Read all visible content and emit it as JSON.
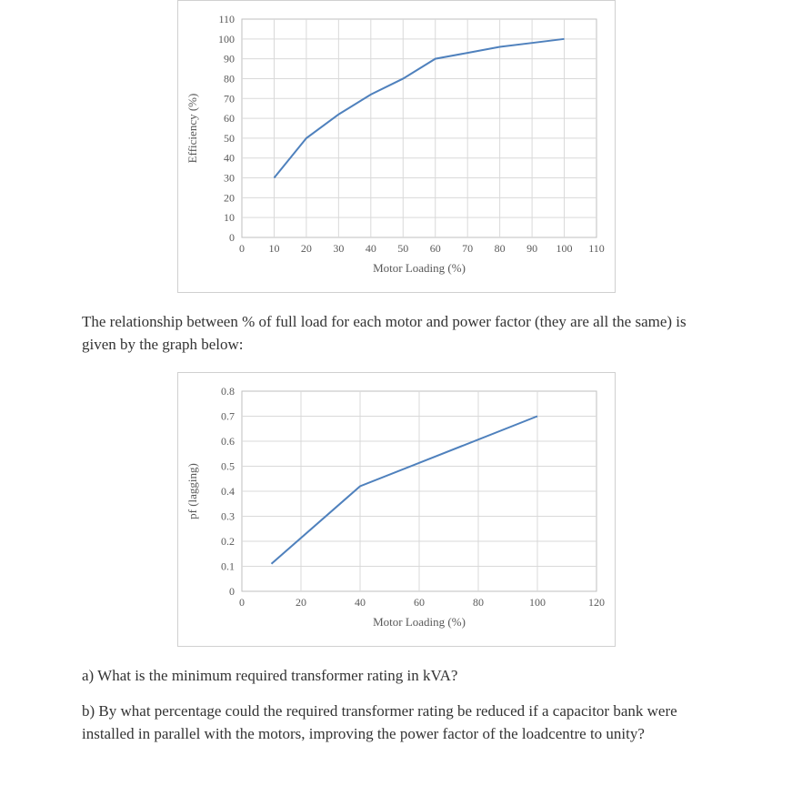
{
  "chart1": {
    "type": "line",
    "ylabel": "Efficiency (%)",
    "xlabel": "Motor Loading (%)",
    "x_values": [
      10,
      20,
      30,
      40,
      50,
      60,
      70,
      80,
      90,
      100
    ],
    "y_values": [
      30,
      50,
      62,
      72,
      80,
      90,
      93,
      96,
      98,
      100
    ],
    "line_color": "#4f81bd",
    "xlim": [
      0,
      110
    ],
    "ylim": [
      0,
      110
    ],
    "xtick_step": 10,
    "ytick_step": 10,
    "grid_color": "#d9d9d9",
    "border_color": "#bfbfbf",
    "background_color": "#ffffff",
    "label_fontsize": 13,
    "tick_fontsize": 12
  },
  "paragraph1": "The relationship between % of full load for each motor and power factor (they are all the same) is given by the graph below:",
  "chart2": {
    "type": "line",
    "ylabel": "pf (lagging)",
    "xlabel": "Motor Loading (%)",
    "x_values": [
      10,
      40,
      100
    ],
    "y_values": [
      0.11,
      0.42,
      0.7
    ],
    "line_color": "#4f81bd",
    "xlim": [
      0,
      120
    ],
    "ylim": [
      0,
      0.8
    ],
    "xtick_step": 20,
    "ytick_step": 0.1,
    "grid_color": "#d9d9d9",
    "border_color": "#bfbfbf",
    "background_color": "#ffffff",
    "label_fontsize": 13,
    "tick_fontsize": 12
  },
  "question_a": "a) What is the minimum required transformer rating in kVA?",
  "question_b": "b) By what percentage could the required transformer rating be reduced if a capacitor bank were installed in parallel with the motors, improving the power factor of the loadcentre to unity?"
}
